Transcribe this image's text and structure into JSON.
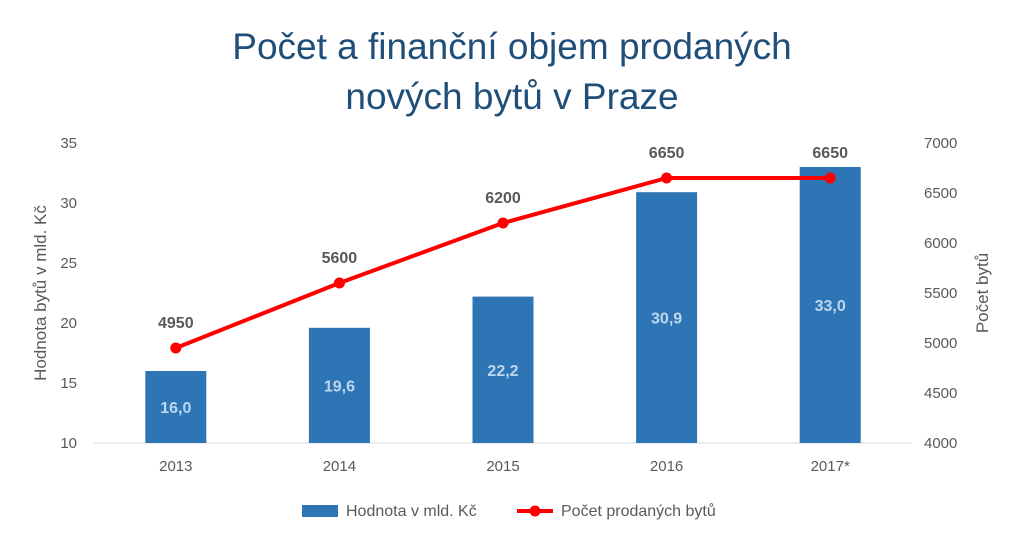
{
  "chart_data": {
    "type": "bar",
    "title_lines": [
      "Počet a finanční objem prodaných",
      "nových bytů v Praze"
    ],
    "categories": [
      "2013",
      "2014",
      "2015",
      "2016",
      "2017*"
    ],
    "series": [
      {
        "name": "Hodnota v mld. Kč",
        "type": "bar",
        "axis": "left",
        "color": "#2e75b6",
        "values": [
          16.0,
          19.6,
          22.2,
          30.9,
          33.0
        ],
        "labels": [
          "16,0",
          "19,6",
          "22,2",
          "30,9",
          "33,0"
        ]
      },
      {
        "name": "Počet prodaných bytů",
        "type": "line",
        "axis": "right",
        "color": "#ff0000",
        "values": [
          4950,
          5600,
          6200,
          6650,
          6650
        ],
        "labels": [
          "4950",
          "5600",
          "6200",
          "6650",
          "6650"
        ]
      }
    ],
    "y_left": {
      "label": "Hodnota bytů v mld. Kč",
      "lim": [
        10,
        35
      ],
      "ticks": [
        "10",
        "15",
        "20",
        "25",
        "30",
        "35"
      ]
    },
    "y_right": {
      "label": "Počet bytů",
      "lim": [
        4000,
        7000
      ],
      "ticks": [
        "4000",
        "4500",
        "5000",
        "5500",
        "6000",
        "6500",
        "7000"
      ]
    },
    "grid": false,
    "legend_position": "bottom"
  }
}
